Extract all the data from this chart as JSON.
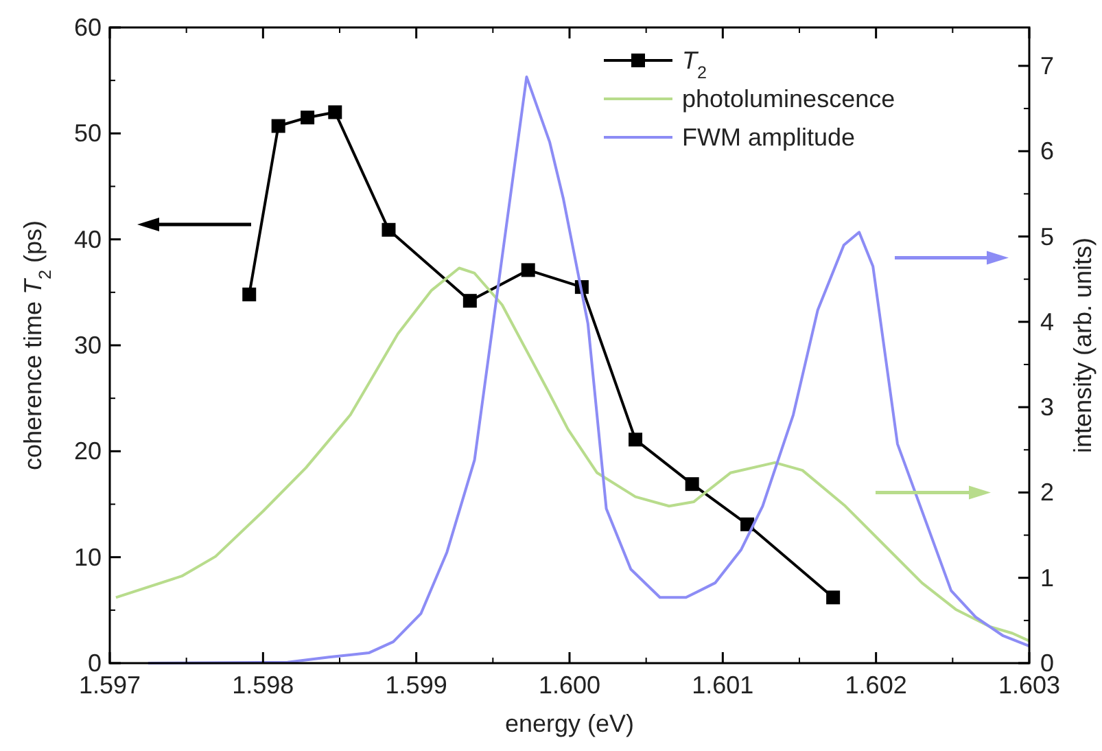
{
  "chart_data": {
    "type": "line",
    "xlabel": "energy (eV)",
    "ylabel": "coherence time T$_{2}$ (ps)",
    "y2label": "intensity (arb. units)",
    "xlim": [
      1.597,
      1.603
    ],
    "xticks": [
      1.597,
      1.598,
      1.599,
      {
        "value": 1.6,
        "label": "1.600"
      },
      1.601,
      1.602,
      1.603
    ],
    "ylim": [
      0,
      60
    ],
    "yticks": [
      0,
      10,
      20,
      30,
      40,
      50,
      60
    ],
    "y2lim": [
      0,
      7.45
    ],
    "y2ticks": [
      0,
      1,
      2,
      3,
      4,
      5,
      6,
      7
    ],
    "legend": "top right",
    "grid": false,
    "series": [
      {
        "name": "T$_{2}$",
        "color": "#000000",
        "marker": "square",
        "x": [
          1.59791,
          1.5981,
          1.59829,
          1.59847,
          1.59882,
          1.59935,
          1.59973,
          1.60008,
          1.60043,
          1.6008,
          1.60116,
          1.60172
        ],
        "values": [
          34.8,
          50.7,
          51.5,
          52.0,
          40.9,
          34.2,
          37.1,
          35.5,
          21.1,
          16.9,
          13.1,
          6.2
        ]
      },
      {
        "name": "photoluminescence",
        "color": "#b8dc8c",
        "axis": "y2",
        "marker": "none",
        "x": [
          1.59704,
          1.59747,
          1.59769,
          1.598,
          1.59828,
          1.59857,
          1.59888,
          1.5991,
          1.59928,
          1.59938,
          1.59956,
          1.59986,
          1.59999,
          1.60018,
          1.60043,
          1.60065,
          1.60081,
          1.60105,
          1.60134,
          1.60152,
          1.6018,
          1.60205,
          1.6023,
          1.60252,
          1.60274,
          1.60289,
          1.603
        ],
        "values": [
          0.77,
          1.02,
          1.25,
          1.78,
          2.29,
          2.91,
          3.86,
          4.37,
          4.63,
          4.57,
          4.2,
          3.19,
          2.74,
          2.23,
          1.95,
          1.84,
          1.89,
          2.23,
          2.35,
          2.26,
          1.84,
          1.39,
          0.94,
          0.63,
          0.43,
          0.35,
          0.26
        ]
      },
      {
        "name": "FWM amplitude",
        "color": "#8c8cf5",
        "axis": "y2",
        "marker": "none",
        "x": [
          1.59725,
          1.59816,
          1.59843,
          1.59869,
          1.59885,
          1.59903,
          1.5992,
          1.59938,
          1.59972,
          1.59987,
          1.59996,
          1.60012,
          1.60024,
          1.6004,
          1.60059,
          1.60076,
          1.60095,
          1.60112,
          1.60126,
          1.60146,
          1.60162,
          1.60179,
          1.60189,
          1.60198,
          1.60214,
          1.60249,
          1.60265,
          1.60283,
          1.603
        ],
        "values": [
          0,
          0.01,
          0.07,
          0.12,
          0.25,
          0.58,
          1.3,
          2.38,
          6.87,
          6.11,
          5.44,
          3.98,
          1.81,
          1.1,
          0.77,
          0.77,
          0.94,
          1.33,
          1.84,
          2.91,
          4.14,
          4.9,
          5.05,
          4.65,
          2.57,
          0.85,
          0.54,
          0.32,
          0.2
        ]
      }
    ]
  }
}
